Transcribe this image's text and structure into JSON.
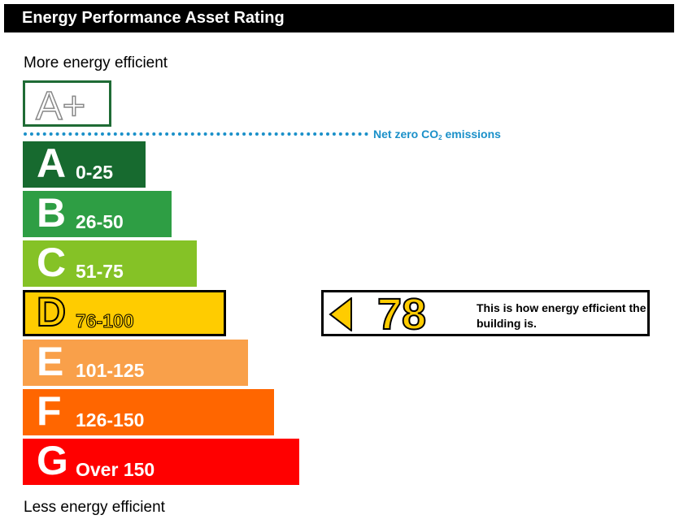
{
  "header": {
    "title": "Energy Performance Asset Rating"
  },
  "captions": {
    "top": "More energy efficient",
    "bottom": "Less energy efficient"
  },
  "aplus": {
    "label": "A+",
    "color": "#1f6b35"
  },
  "net_zero": {
    "prefix": "Net zero CO",
    "subscript": "2",
    "suffix": " emissions",
    "color": "#1a90c9"
  },
  "chart_data": {
    "type": "bar",
    "orientation": "horizontal",
    "categories": [
      "A",
      "B",
      "C",
      "D",
      "E",
      "F",
      "G"
    ],
    "ranges": [
      "0-25",
      "26-50",
      "51-75",
      "76-100",
      "101-125",
      "126-150",
      "Over 150"
    ],
    "colors": [
      "#176a2f",
      "#2e9e44",
      "#85c226",
      "#ffcc00",
      "#f9a04a",
      "#ff6600",
      "#ff0000"
    ],
    "current_band": "D",
    "rating": 78,
    "rating_text": "This is how energy efficient the building is."
  }
}
